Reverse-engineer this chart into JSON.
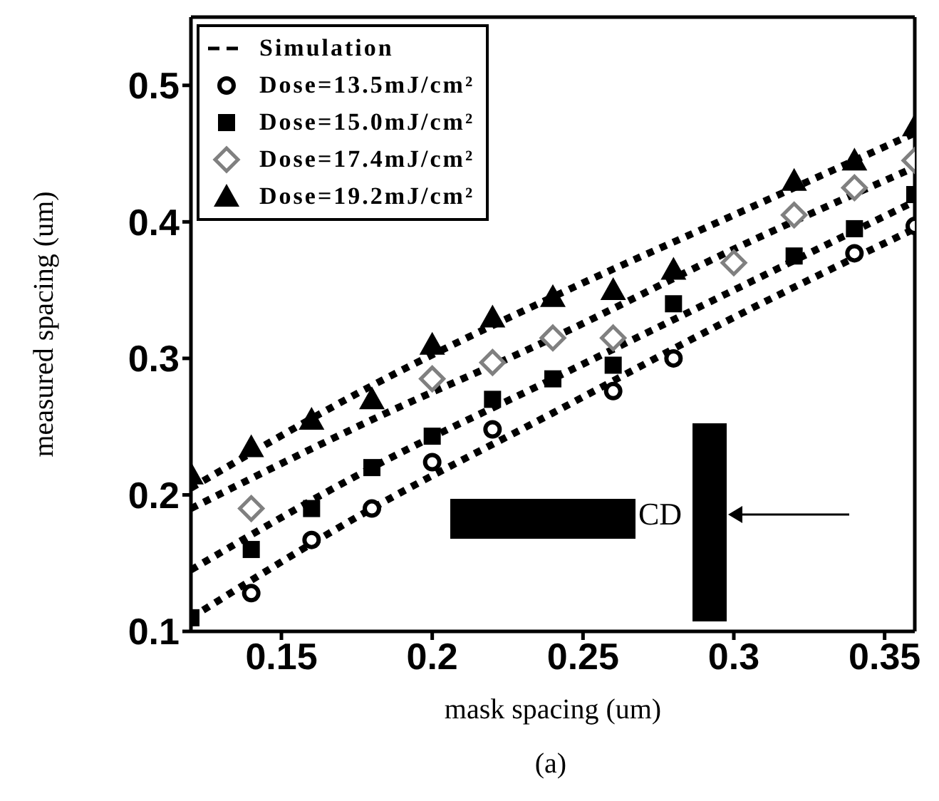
{
  "chart_data": {
    "type": "scatter",
    "xlabel": "mask spacing (um)",
    "ylabel": "measured spacing (um)",
    "xlim": [
      0.12,
      0.36
    ],
    "ylim": [
      0.1,
      0.55
    ],
    "xticks": [
      0.15,
      0.2,
      0.25,
      0.3,
      0.35
    ],
    "yticks": [
      0.1,
      0.2,
      0.3,
      0.4,
      0.5
    ],
    "grid": false,
    "legend": "top left",
    "series": [
      {
        "name": "Simulation",
        "type": "line",
        "line_style": "dotted",
        "marker": "none",
        "color": "#000000",
        "x": [
          0.12,
          0.18,
          0.24,
          0.3,
          0.36
        ],
        "values": [
          0.205,
          0.28,
          0.345,
          0.405,
          0.465
        ]
      },
      {
        "type": "line",
        "line_style": "dotted",
        "marker": "none",
        "color": "#000000",
        "x": [
          0.12,
          0.18,
          0.24,
          0.3,
          0.36
        ],
        "values": [
          0.19,
          0.255,
          0.315,
          0.38,
          0.44
        ]
      },
      {
        "type": "line",
        "line_style": "dotted",
        "marker": "none",
        "color": "#000000",
        "x": [
          0.12,
          0.18,
          0.24,
          0.3,
          0.36
        ],
        "values": [
          0.145,
          0.22,
          0.285,
          0.35,
          0.415
        ]
      },
      {
        "type": "line",
        "line_style": "dotted",
        "marker": "none",
        "color": "#000000",
        "x": [
          0.12,
          0.18,
          0.24,
          0.3,
          0.36
        ],
        "values": [
          0.11,
          0.19,
          0.26,
          0.33,
          0.395
        ]
      },
      {
        "name": "Dose=13.5mJ/cm²",
        "marker": "circle",
        "color": "#000000",
        "x": [
          0.14,
          0.16,
          0.18,
          0.2,
          0.22,
          0.26,
          0.28,
          0.34,
          0.36
        ],
        "values": [
          0.128,
          0.167,
          0.19,
          0.224,
          0.248,
          0.276,
          0.3,
          0.377,
          0.397
        ]
      },
      {
        "name": "Dose=15.0mJ/cm²",
        "marker": "square",
        "color": "#000000",
        "x": [
          0.12,
          0.14,
          0.16,
          0.18,
          0.2,
          0.22,
          0.24,
          0.26,
          0.28,
          0.32,
          0.34,
          0.36
        ],
        "values": [
          0.11,
          0.16,
          0.19,
          0.22,
          0.243,
          0.27,
          0.285,
          0.295,
          0.34,
          0.375,
          0.395,
          0.42
        ]
      },
      {
        "name": "Dose=17.4mJ/cm²",
        "marker": "diamond",
        "color": "#808080",
        "x": [
          0.14,
          0.2,
          0.22,
          0.24,
          0.26,
          0.3,
          0.32,
          0.34,
          0.36
        ],
        "values": [
          0.19,
          0.285,
          0.297,
          0.315,
          0.315,
          0.37,
          0.405,
          0.425,
          0.445
        ]
      },
      {
        "name": "Dose=19.2mJ/cm²",
        "marker": "triangle",
        "color": "#000000",
        "x": [
          0.12,
          0.14,
          0.16,
          0.18,
          0.2,
          0.22,
          0.24,
          0.26,
          0.28,
          0.32,
          0.34,
          0.36
        ],
        "values": [
          0.215,
          0.235,
          0.255,
          0.27,
          0.31,
          0.33,
          0.345,
          0.35,
          0.365,
          0.43,
          0.445,
          0.47
        ]
      }
    ],
    "annotations": [
      "CD",
      "(a)"
    ]
  }
}
